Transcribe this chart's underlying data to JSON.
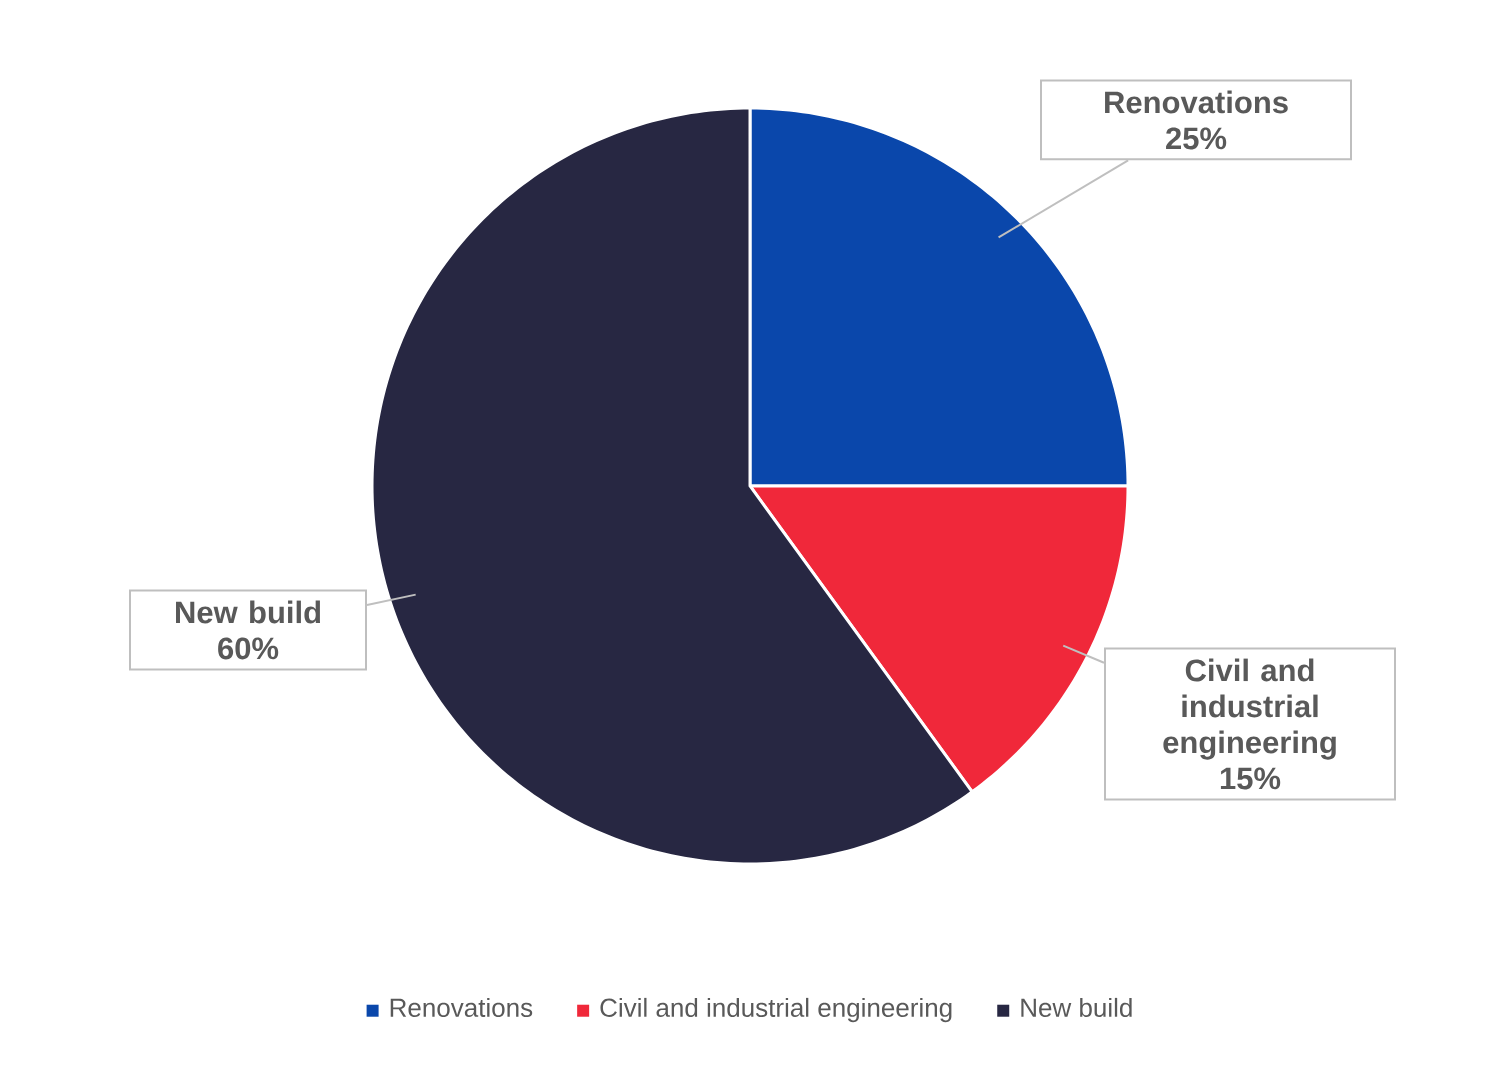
{
  "chart_data": {
    "type": "pie",
    "categories": [
      "Renovations",
      "Civil and industrial engineering",
      "New build"
    ],
    "values": [
      25,
      15,
      60
    ],
    "value_labels": [
      "25%",
      "15%",
      "60%"
    ],
    "colors": [
      "#0a47ab",
      "#f0283a",
      "#272742"
    ],
    "legend": "bottom"
  }
}
